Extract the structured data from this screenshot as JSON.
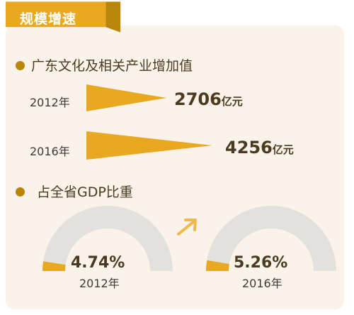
{
  "header": {
    "tab_label": "规模增速"
  },
  "colors": {
    "gold": "#e8a822",
    "gold_dark": "#b8860b",
    "gray": "#e3e1de",
    "panel": "#fbf3ea",
    "arrow": "#f0b84a"
  },
  "chart_data": [
    {
      "type": "bar",
      "title": "广东文化及相关产业增加值",
      "categories": [
        "2012年",
        "2016年"
      ],
      "values": [
        2706,
        4256
      ],
      "value_labels": [
        "2706",
        "4256"
      ],
      "unit": "亿元"
    },
    {
      "type": "pie",
      "title": "占全省GDP比重",
      "categories": [
        "2012年",
        "2016年"
      ],
      "values": [
        4.74,
        5.26
      ],
      "value_labels": [
        "4.74%",
        "5.26%"
      ]
    }
  ]
}
